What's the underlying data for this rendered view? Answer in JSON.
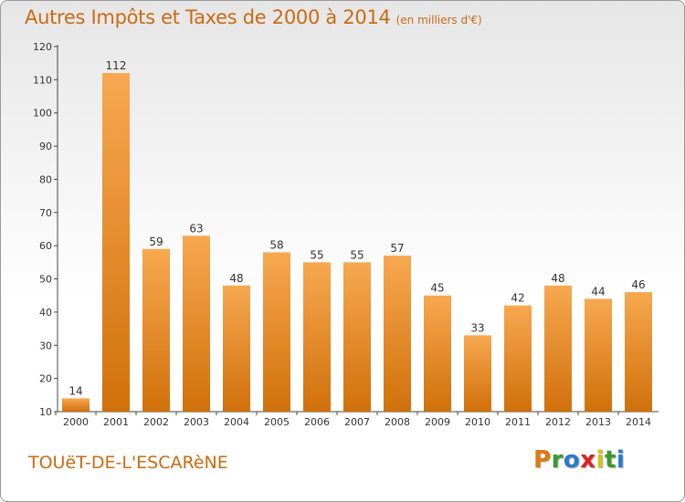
{
  "header": {
    "title": "Autres Impôts et Taxes de 2000 à 2014",
    "subtitle": "(en milliers d'€)"
  },
  "footer": {
    "commune": "TOUëT-DE-L'ESCARèNE"
  },
  "logo": {
    "text": "Proxiti",
    "letter_colors": [
      "#e07a10",
      "#3a9a2c",
      "#2a7acc",
      "#e02020",
      "#d4c020",
      "#3a9a2c",
      "#2a7acc"
    ]
  },
  "colors": {
    "bar_light": "#f7a850",
    "bar_dark": "#d0700a",
    "title": "#cc6a12"
  },
  "chart_data": {
    "type": "bar",
    "title": "Autres Impôts et Taxes de 2000 à 2014",
    "subtitle": "(en milliers d'€)",
    "xlabel": "",
    "ylabel": "",
    "categories": [
      "2000",
      "2001",
      "2002",
      "2003",
      "2004",
      "2005",
      "2006",
      "2007",
      "2008",
      "2009",
      "2010",
      "2011",
      "2012",
      "2013",
      "2014"
    ],
    "values": [
      14,
      112,
      59,
      63,
      48,
      58,
      55,
      55,
      57,
      45,
      33,
      42,
      48,
      44,
      46
    ],
    "ylim": [
      10,
      120
    ],
    "yticks": [
      10,
      20,
      30,
      40,
      50,
      60,
      70,
      80,
      90,
      100,
      110,
      120
    ],
    "grid": false,
    "legend": "none"
  }
}
